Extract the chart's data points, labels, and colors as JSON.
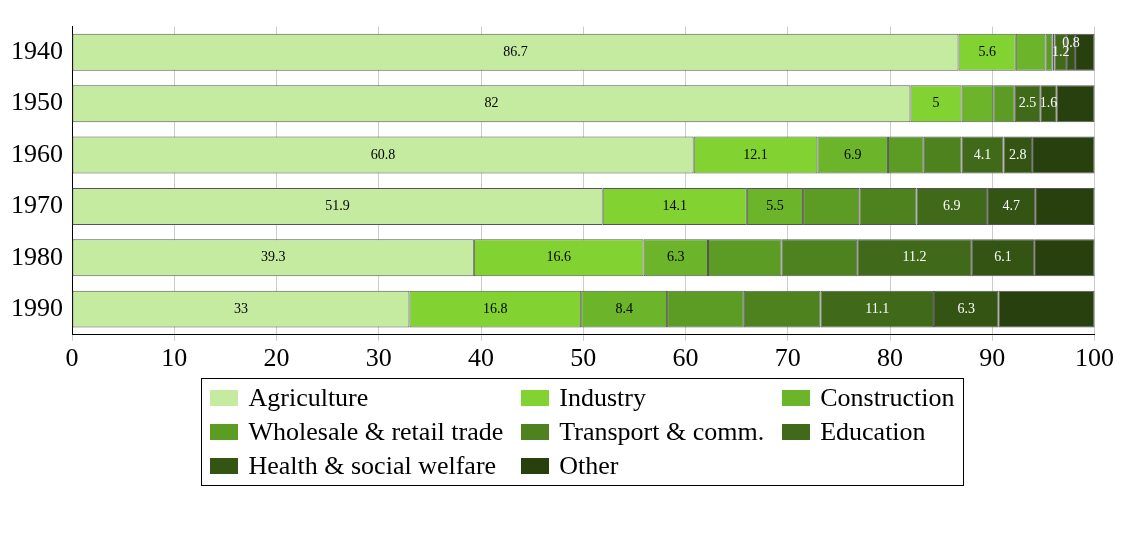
{
  "chart_data": {
    "type": "bar",
    "orientation": "horizontal",
    "stacked": true,
    "categories": [
      "1940",
      "1950",
      "1960",
      "1970",
      "1980",
      "1990"
    ],
    "xlim": [
      0,
      100
    ],
    "xticks": [
      0,
      10,
      20,
      30,
      40,
      50,
      60,
      70,
      80,
      90,
      100
    ],
    "grid": "x",
    "legend": "bottom",
    "series": [
      {
        "name": "Agriculture",
        "color": "#c5eba0",
        "values": [
          86.7,
          82,
          60.8,
          51.9,
          39.3,
          33
        ],
        "value_labels": [
          "86.7",
          "82",
          "60.8",
          "51.9",
          "39.3",
          "33"
        ]
      },
      {
        "name": "Industry",
        "color": "#82d332",
        "values": [
          5.6,
          5,
          12.1,
          14.1,
          16.6,
          16.8
        ],
        "value_labels": [
          "5.6",
          "5",
          "12.1",
          "14.1",
          "16.6",
          "16.8"
        ]
      },
      {
        "name": "Construction",
        "color": "#6cb42a",
        "values": [
          2.9,
          3.1,
          6.9,
          5.5,
          6.3,
          8.4
        ],
        "value_labels": [
          null,
          null,
          "6.9",
          "5.5",
          "6.3",
          "8.4"
        ]
      },
      {
        "name": "Wholesale & retail trade",
        "color": "#5c9c24",
        "values": [
          0.7,
          2.1,
          3.5,
          5.5,
          7.2,
          7.5
        ]
      },
      {
        "name": "Transport & comm.",
        "color": "#4d821e",
        "values": [
          0.2,
          0,
          3.7,
          5.6,
          7.4,
          7.5
        ]
      },
      {
        "name": "Education",
        "color": "#41691a",
        "values": [
          1.2,
          2.5,
          4.1,
          6.9,
          11.2,
          11.1
        ],
        "value_labels": [
          "1.2",
          "2.5",
          "4.1",
          "6.9",
          "11.2",
          "11.1"
        ]
      },
      {
        "name": "Health & social welfare",
        "color": "#345414",
        "values": [
          0.8,
          1.6,
          2.8,
          4.7,
          6.1,
          6.3
        ],
        "value_labels": [
          "0.8",
          "1.6",
          "2.8",
          "4.7",
          "6.1",
          "6.3"
        ]
      },
      {
        "name": "Other",
        "color": "#283f0e",
        "values": [
          1.9,
          3.7,
          6.1,
          5.8,
          5.9,
          9.4
        ]
      }
    ]
  }
}
